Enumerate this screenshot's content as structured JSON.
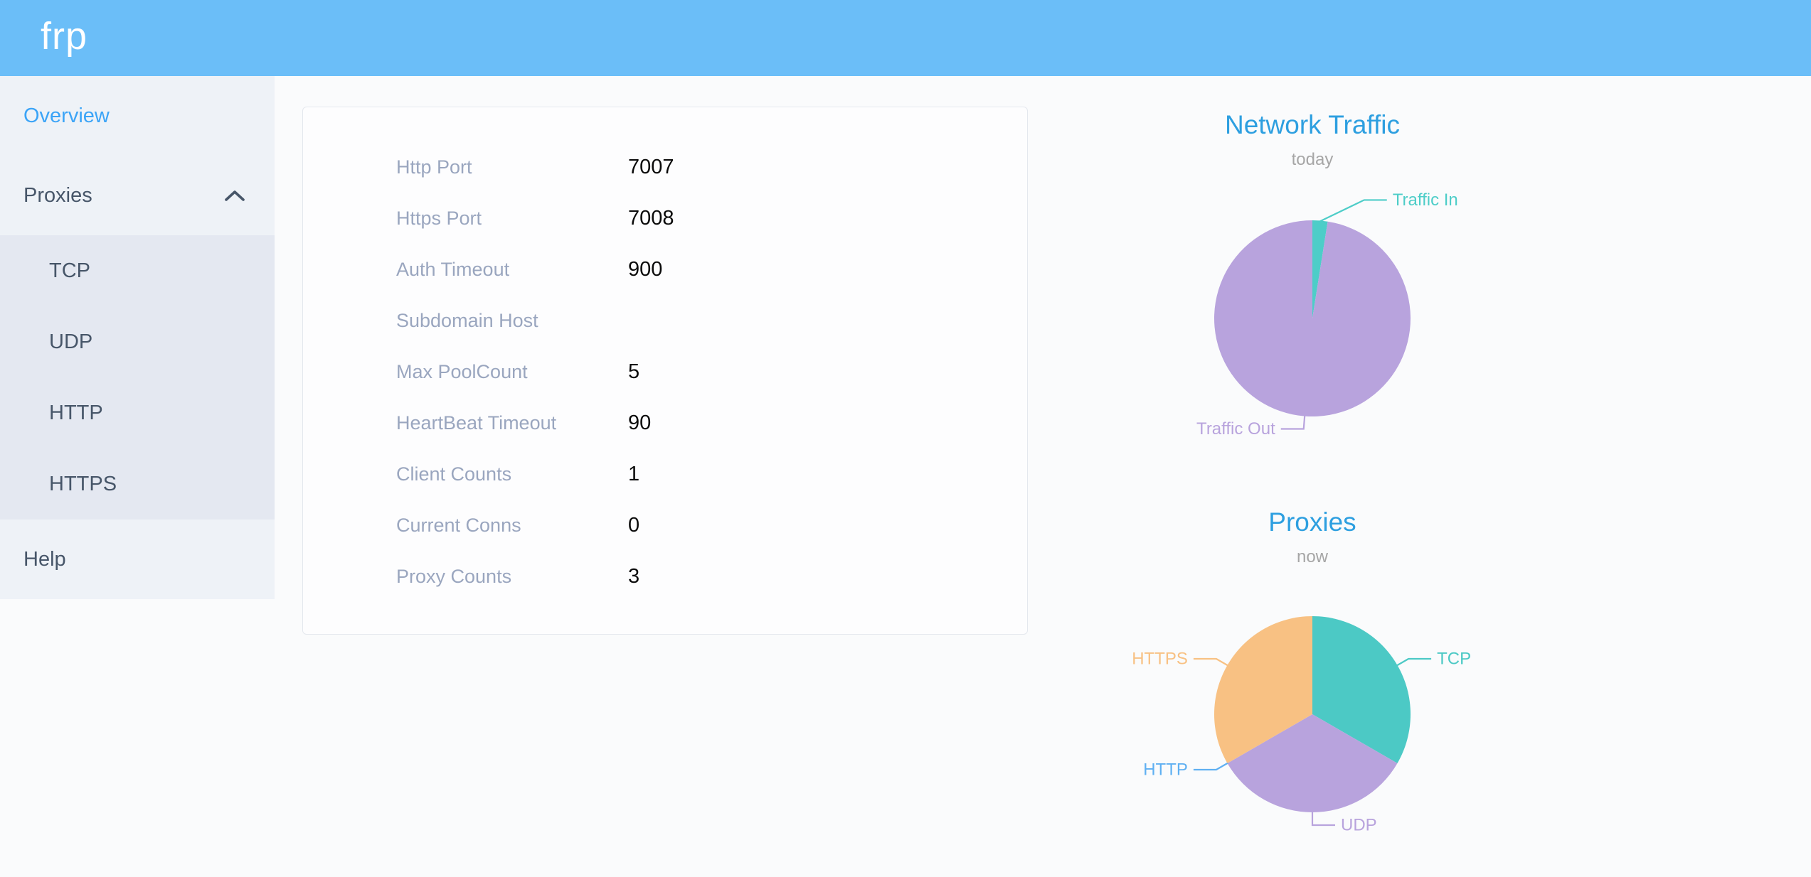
{
  "header": {
    "logo": "frp"
  },
  "sidebar": {
    "items": [
      {
        "label": "Overview",
        "active": true
      },
      {
        "label": "Proxies",
        "expanded": true
      },
      {
        "label": "Help"
      }
    ],
    "proxies_children": [
      "TCP",
      "UDP",
      "HTTP",
      "HTTPS"
    ]
  },
  "server_info": {
    "rows": [
      {
        "label": "Http Port",
        "value": "7007"
      },
      {
        "label": "Https Port",
        "value": "7008"
      },
      {
        "label": "Auth Timeout",
        "value": "900"
      },
      {
        "label": "Subdomain Host",
        "value": ""
      },
      {
        "label": "Max PoolCount",
        "value": "5"
      },
      {
        "label": "HeartBeat Timeout",
        "value": "90"
      },
      {
        "label": "Client Counts",
        "value": "1"
      },
      {
        "label": "Current Conns",
        "value": "0"
      },
      {
        "label": "Proxy Counts",
        "value": "3"
      }
    ]
  },
  "chart_data": [
    {
      "type": "pie",
      "title": "Network Traffic",
      "subtitle": "today",
      "legend_position": "none",
      "label_position": "outside",
      "series": [
        {
          "name": "Traffic In",
          "value": 2.5,
          "color": "#4dcdc8"
        },
        {
          "name": "Traffic Out",
          "value": 97.5,
          "color": "#b8a3dd"
        }
      ]
    },
    {
      "type": "pie",
      "title": "Proxies",
      "subtitle": "now",
      "legend_position": "none",
      "label_position": "outside",
      "series": [
        {
          "name": "TCP",
          "value": 1,
          "color": "#4cc9c5"
        },
        {
          "name": "UDP",
          "value": 1,
          "color": "#b8a3dd"
        },
        {
          "name": "HTTP",
          "value": 0,
          "color": "#5fb0f2"
        },
        {
          "name": "HTTPS",
          "value": 1,
          "color": "#f8c183"
        }
      ]
    }
  ],
  "colors": {
    "header_bg": "#6bbef8",
    "sidebar_bg": "#eef2f7",
    "submenu_bg": "#e4e8f1",
    "active_item": "#3ba4f7",
    "chart_title": "#2d9fe0",
    "info_label": "#9aa6bf"
  }
}
